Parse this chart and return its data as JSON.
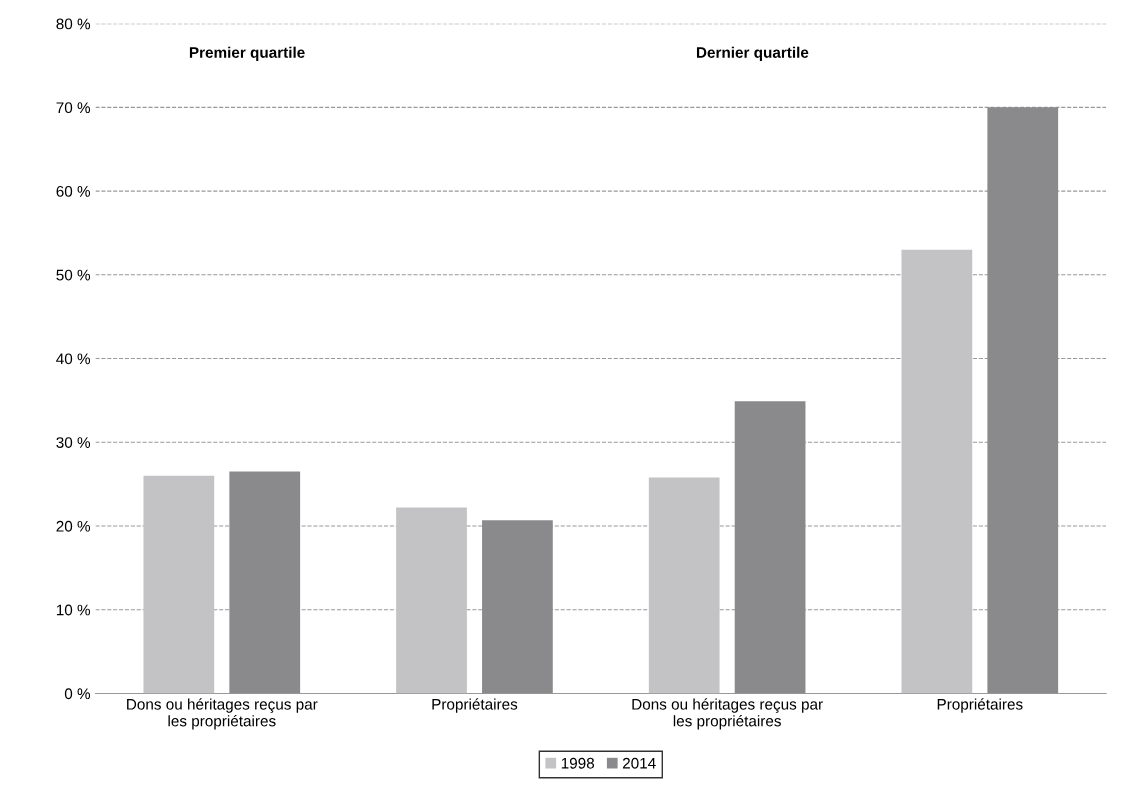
{
  "chart_data": {
    "type": "bar",
    "categories": [
      "Dons ou héritages reçus par\nles propriétaires",
      "Propriétaires",
      "Dons ou héritages reçus par\nles propriétaires",
      "Propriétaires"
    ],
    "series": [
      {
        "name": "1998",
        "color": "#c3c3c5",
        "values": [
          26.0,
          22.2,
          25.8,
          53.0
        ]
      },
      {
        "name": "2014",
        "color": "#8a8a8c",
        "values": [
          26.5,
          20.7,
          34.9,
          70.0
        ]
      }
    ],
    "annotations": [
      "Premier quartile",
      "Dernier quartile"
    ],
    "ylim": [
      0,
      80
    ],
    "yticks": [
      {
        "value": 0,
        "label": "0 %"
      },
      {
        "value": 10,
        "label": "10 %"
      },
      {
        "value": 20,
        "label": "20 %"
      },
      {
        "value": 30,
        "label": "30 %"
      },
      {
        "value": 40,
        "label": "40 %"
      },
      {
        "value": 50,
        "label": "50 %"
      },
      {
        "value": 60,
        "label": "60 %"
      },
      {
        "value": 70,
        "label": "70 %"
      },
      {
        "value": 80,
        "label": "80 %"
      }
    ],
    "grid": "y",
    "legend": "bottom"
  }
}
